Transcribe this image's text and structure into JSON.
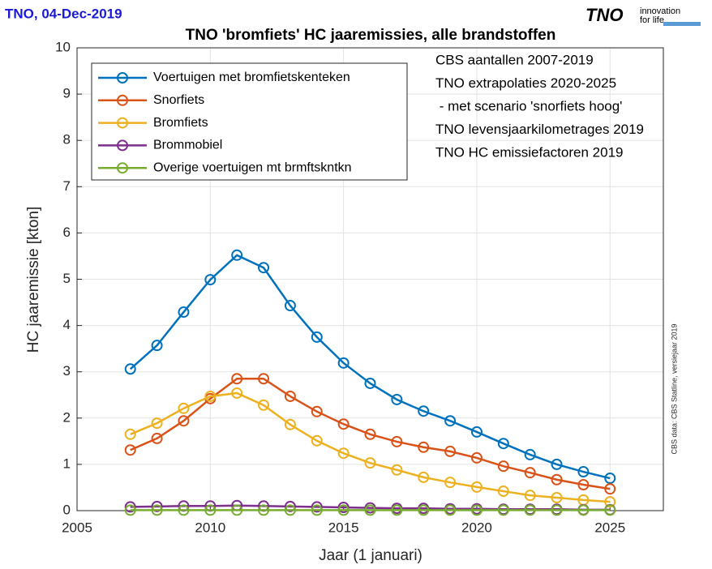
{
  "header": {
    "stamp": "TNO,  04-Dec-2019",
    "logo": "TNO",
    "logo_tagline": [
      "innovation",
      "for life"
    ]
  },
  "chart_data": {
    "type": "line",
    "title": "TNO 'bromfiets' HC jaaremissies, alle brandstoffen",
    "x_label": "Jaar (1 januari)",
    "y_label": "HC jaaremissie [kton]",
    "annotations": [
      "CBS aantallen 2007-2019",
      "TNO extrapolaties 2020-2025",
      " - met scenario 'snorfiets hoog'",
      "TNO levensjaarkilometrages 2019",
      "TNO HC emissiefactoren 2019"
    ],
    "source_note": "CBS data: CBS Statline, versiejaar 2019",
    "x": [
      2007,
      2008,
      2009,
      2010,
      2011,
      2012,
      2013,
      2014,
      2015,
      2016,
      2017,
      2018,
      2019,
      2020,
      2021,
      2022,
      2023,
      2024,
      2025
    ],
    "series": [
      {
        "name": "Voertuigen met bromfietskenteken",
        "color": "#0072bd",
        "values": [
          3.06,
          3.57,
          4.29,
          4.99,
          5.52,
          5.25,
          4.43,
          3.75,
          3.19,
          2.75,
          2.4,
          2.15,
          1.94,
          1.7,
          1.45,
          1.21,
          1.0,
          0.84,
          0.7
        ]
      },
      {
        "name": "Snorfiets",
        "color": "#d95319",
        "values": [
          1.31,
          1.56,
          1.94,
          2.42,
          2.85,
          2.85,
          2.47,
          2.14,
          1.87,
          1.65,
          1.49,
          1.37,
          1.28,
          1.14,
          0.96,
          0.82,
          0.67,
          0.56,
          0.47
        ]
      },
      {
        "name": "Bromfiets",
        "color": "#edb120",
        "values": [
          1.65,
          1.89,
          2.21,
          2.47,
          2.54,
          2.28,
          1.86,
          1.51,
          1.24,
          1.03,
          0.88,
          0.72,
          0.61,
          0.51,
          0.42,
          0.33,
          0.28,
          0.23,
          0.19
        ]
      },
      {
        "name": "Brommobiel",
        "color": "#7e2f8e",
        "values": [
          0.08,
          0.09,
          0.1,
          0.1,
          0.11,
          0.1,
          0.09,
          0.08,
          0.07,
          0.06,
          0.05,
          0.05,
          0.04,
          0.04,
          0.03,
          0.03,
          0.03,
          0.02,
          0.02
        ]
      },
      {
        "name": "Overige voertuigen mt brmftskntkn",
        "color": "#77ac30",
        "values": [
          0.01,
          0.01,
          0.01,
          0.01,
          0.01,
          0.01,
          0.01,
          0.01,
          0.01,
          0.01,
          0.01,
          0.01,
          0.01,
          0.01,
          0.01,
          0.01,
          0.01,
          0.01,
          0.01
        ]
      }
    ],
    "xlim": [
      2005,
      2027
    ],
    "xticks": [
      2005,
      2010,
      2015,
      2020,
      2025
    ],
    "ylim": [
      0,
      10
    ],
    "yticks": [
      0,
      1,
      2,
      3,
      4,
      5,
      6,
      7,
      8,
      9,
      10
    ],
    "grid": true,
    "legend": "upper left"
  }
}
